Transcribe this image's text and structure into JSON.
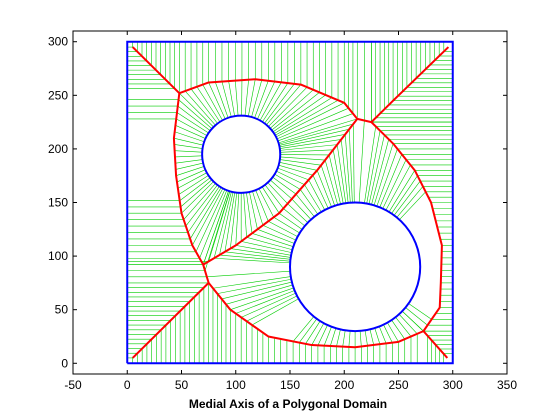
{
  "chart_data": {
    "type": "line",
    "title": "",
    "xlabel": "Medial Axis of a Polygonal Domain",
    "ylabel": "",
    "xlim": [
      -50,
      350
    ],
    "ylim": [
      -10,
      310
    ],
    "xticks": [
      -50,
      0,
      50,
      100,
      150,
      200,
      250,
      300,
      350
    ],
    "yticks": [
      0,
      50,
      100,
      150,
      200,
      250,
      300
    ],
    "grid": false,
    "legend": "none",
    "colors": {
      "boundary": "#0000ff",
      "medial_axis": "#ff0000",
      "spokes": "#00cc00"
    },
    "domain": {
      "square": [
        [
          0,
          0
        ],
        [
          300,
          0
        ],
        [
          300,
          300
        ],
        [
          0,
          300
        ],
        [
          0,
          0
        ]
      ],
      "circles": [
        {
          "cx": 105,
          "cy": 195,
          "r": 36
        },
        {
          "cx": 210,
          "cy": 90,
          "r": 60
        }
      ]
    },
    "medial_axis": [
      [
        [
          5,
          295
        ],
        [
          48,
          252
        ],
        [
          75,
          262
        ],
        [
          118,
          265
        ],
        [
          160,
          260
        ],
        [
          200,
          243
        ],
        [
          212,
          228
        ],
        [
          225,
          225
        ],
        [
          245,
          205
        ],
        [
          265,
          180
        ],
        [
          280,
          150
        ],
        [
          290,
          110
        ],
        [
          289,
          75
        ],
        [
          288,
          52
        ],
        [
          273,
          30
        ],
        [
          250,
          20
        ],
        [
          210,
          15
        ],
        [
          170,
          17
        ],
        [
          130,
          25
        ],
        [
          95,
          50
        ],
        [
          75,
          75
        ],
        [
          70,
          92
        ],
        [
          60,
          110
        ],
        [
          50,
          140
        ],
        [
          45,
          175
        ],
        [
          43,
          210
        ],
        [
          48,
          252
        ]
      ],
      [
        [
          225,
          225
        ],
        [
          245,
          245
        ],
        [
          296,
          295
        ]
      ],
      [
        [
          273,
          30
        ],
        [
          295,
          5
        ]
      ],
      [
        [
          5,
          5
        ],
        [
          75,
          75
        ]
      ],
      [
        [
          70,
          92
        ],
        [
          100,
          110
        ],
        [
          140,
          140
        ],
        [
          175,
          180
        ],
        [
          212,
          228
        ]
      ]
    ]
  }
}
